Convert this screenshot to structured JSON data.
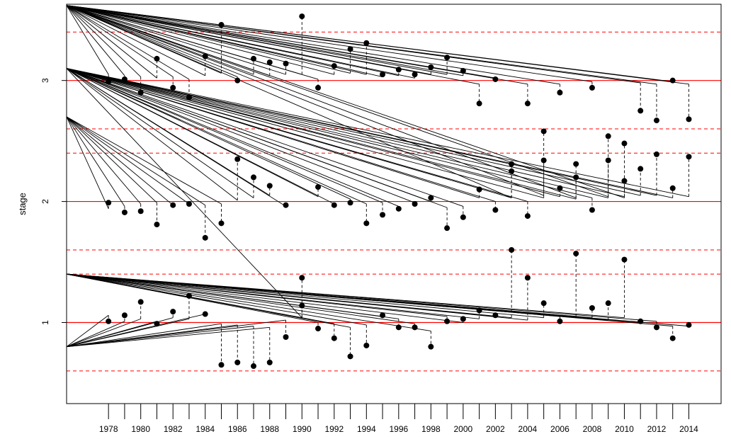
{
  "chart_data": {
    "type": "scatter",
    "title": "",
    "xlabel": "",
    "ylabel": "stage",
    "xlim": [
      1975.4,
      2016.0
    ],
    "ylim": [
      0.33,
      3.63
    ],
    "x_ticks": [
      1978,
      1979,
      1980,
      1981,
      1982,
      1983,
      1984,
      1985,
      1986,
      1987,
      1988,
      1989,
      1990,
      1991,
      1992,
      1993,
      1994,
      1995,
      1996,
      1997,
      1998,
      1999,
      2000,
      2001,
      2002,
      2003,
      2004,
      2005,
      2006,
      2007,
      2008,
      2009,
      2010,
      2011,
      2012,
      2013,
      2014
    ],
    "x_tick_labels": [
      "1978",
      "",
      "1980",
      "",
      "1982",
      "",
      "1984",
      "",
      "1986",
      "",
      "1988",
      "",
      "1990",
      "",
      "1992",
      "",
      "1994",
      "",
      "1996",
      "",
      "1998",
      "",
      "2000",
      "",
      "2002",
      "",
      "2004",
      "",
      "2006",
      "",
      "2008",
      "",
      "2010",
      "",
      "2012",
      "",
      "2014"
    ],
    "y_ticks": [
      1,
      2,
      3
    ],
    "y_tick_labels": [
      "1",
      "2",
      "3"
    ],
    "grid": false,
    "thresholds_solid": [
      1,
      2,
      3
    ],
    "thresholds_dashed": [
      0.6,
      1.4,
      1.6,
      2.4,
      2.6,
      3.4
    ],
    "threshold_color": "#ff0000",
    "point_color": "#000000",
    "fitted_line_color": "#000000",
    "series": [
      {
        "x": [
          1978,
          1979,
          1980,
          1981,
          1982,
          1983,
          1984,
          1985,
          1986,
          1987,
          1988,
          1989,
          1990,
          1991,
          1992,
          1993,
          1994,
          1995,
          1996,
          1997,
          1998,
          1999,
          2000,
          2001,
          2002,
          2003,
          2004,
          2005,
          2006,
          2007,
          2008,
          2009,
          2010,
          2011,
          2012,
          2013,
          2014
        ],
        "y": [
          1.01,
          1.06,
          1.17,
          0.99,
          1.09,
          1.22,
          1.07,
          0.65,
          0.67,
          0.64,
          0.67,
          0.88,
          1.37,
          0.95,
          0.87,
          0.72,
          0.81,
          1.06,
          0.96,
          0.96,
          0.8,
          1.01,
          1.03,
          1.1,
          1.06,
          1.6,
          1.37,
          1.16,
          1.01,
          1.57,
          1.12,
          1.16,
          1.52,
          1.01,
          0.96,
          0.87,
          0.98
        ],
        "fitted": [
          1.06,
          1.01,
          1.03,
          1.01,
          1.04,
          1.03,
          1.07,
          0.99,
          0.98,
          0.97,
          0.96,
          1.02,
          1.04,
          1.0,
          0.99,
          0.96,
          0.98,
          1.05,
          1.03,
          0.99,
          0.93,
          1.05,
          1.0,
          1.03,
          1.05,
          1.04,
          1.02,
          1.04,
          1.05,
          1.05,
          1.04,
          1.02,
          1.04,
          1.0,
          1.01,
          0.97,
          0.97
        ],
        "anchor": [
          0.8,
          0.8,
          0.8,
          0.8,
          0.8,
          0.8,
          0.8,
          0.8,
          0.8,
          0.8,
          0.8,
          0.8,
          1.4,
          1.4,
          1.4,
          1.4,
          1.4,
          1.4,
          1.4,
          1.4,
          1.4,
          1.4,
          1.4,
          1.4,
          1.4,
          1.4,
          1.4,
          1.4,
          1.4,
          1.4,
          1.4,
          1.4,
          1.4,
          1.4,
          1.4,
          1.4,
          1.4
        ]
      },
      {
        "x": [
          1978,
          1979,
          1980,
          1981,
          1982,
          1983,
          1984,
          1985,
          1986,
          1987,
          1988,
          1989,
          1990,
          1991,
          1992,
          1993,
          1994,
          1995,
          1996,
          1997,
          1998,
          1999,
          2000,
          2001,
          2002,
          2003,
          2004,
          2005,
          2006,
          2007,
          2008,
          2009,
          2010,
          2011,
          2012,
          2013,
          2014
        ],
        "y": [
          1.99,
          1.91,
          1.92,
          1.81,
          1.97,
          1.98,
          1.7,
          1.82,
          2.35,
          2.2,
          2.13,
          1.97,
          1.14,
          2.12,
          1.97,
          1.99,
          1.82,
          1.89,
          1.94,
          1.98,
          2.03,
          1.78,
          1.87,
          2.1,
          1.93,
          2.25,
          1.88,
          2.34,
          2.11,
          2.2,
          1.93,
          2.34,
          2.17,
          2.27,
          2.39,
          2.11,
          2.37
        ],
        "fitted": [
          1.94,
          1.96,
          1.98,
          1.99,
          1.97,
          1.98,
          1.97,
          1.98,
          2.01,
          2.03,
          2.05,
          1.96,
          1.04,
          2.04,
          1.98,
          2.02,
          1.98,
          1.99,
          1.96,
          1.99,
          2.0,
          1.95,
          1.96,
          2.03,
          2.0,
          2.03,
          2.0,
          2.03,
          2.04,
          2.02,
          2.03,
          2.03,
          2.04,
          2.05,
          2.05,
          2.03,
          2.04
        ],
        "anchor": [
          2.7,
          2.7,
          2.7,
          2.7,
          2.7,
          2.7,
          2.7,
          2.7,
          3.1,
          3.1,
          3.1,
          3.1,
          3.1,
          3.1,
          3.1,
          3.1,
          3.1,
          3.1,
          3.1,
          3.1,
          3.1,
          3.1,
          3.1,
          3.1,
          3.1,
          3.1,
          3.1,
          3.1,
          3.1,
          3.1,
          3.1,
          3.1,
          3.1,
          3.1,
          3.1,
          3.1,
          3.1
        ]
      },
      {
        "x": [
          1978,
          1979,
          1980,
          1981,
          1982,
          1983,
          1984,
          1985,
          1986,
          1987,
          1988,
          1989,
          1990,
          1991,
          1992,
          1993,
          1994,
          1995,
          1996,
          1997,
          1998,
          1999,
          2000,
          2001,
          2002,
          2003,
          2004,
          2005,
          2006,
          2007,
          2008,
          2009,
          2010,
          2011,
          2012,
          2013,
          2014
        ],
        "y": [
          2.99,
          3.01,
          2.9,
          3.18,
          2.94,
          2.86,
          3.2,
          3.46,
          3.0,
          3.18,
          3.15,
          3.14,
          3.53,
          2.94,
          3.12,
          3.26,
          3.31,
          3.05,
          3.09,
          3.05,
          3.11,
          3.19,
          3.08,
          2.81,
          3.01,
          2.31,
          2.81,
          2.58,
          2.9,
          2.31,
          2.94,
          2.54,
          2.48,
          2.75,
          2.67,
          3.0,
          2.68
        ],
        "fitted": [
          3.05,
          3.04,
          3.03,
          3.02,
          3.03,
          3.01,
          3.04,
          3.06,
          3.03,
          3.05,
          3.04,
          3.05,
          3.05,
          3.01,
          3.05,
          3.06,
          3.05,
          3.03,
          3.04,
          3.02,
          3.05,
          3.05,
          3.04,
          2.97,
          3.02,
          2.03,
          2.97,
          2.05,
          2.97,
          2.03,
          2.99,
          2.04,
          2.03,
          2.98,
          2.97,
          2.99,
          2.97
        ],
        "anchor": [
          3.62,
          3.62,
          3.62,
          3.62,
          3.62,
          3.62,
          3.62,
          3.62,
          3.62,
          3.62,
          3.62,
          3.62,
          3.62,
          3.62,
          3.62,
          3.62,
          3.62,
          3.62,
          3.62,
          3.62,
          3.62,
          3.62,
          3.62,
          3.62,
          3.62,
          3.62,
          3.62,
          3.62,
          3.62,
          3.62,
          3.62,
          3.62,
          3.62,
          3.62,
          3.62,
          3.62,
          3.62
        ]
      }
    ]
  }
}
